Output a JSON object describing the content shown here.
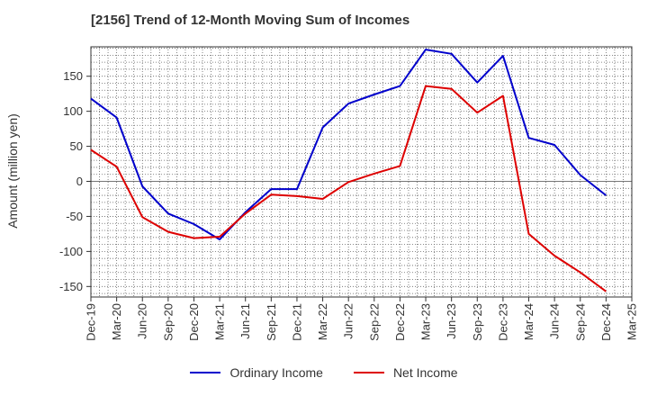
{
  "chart_data": {
    "type": "line",
    "title": "[2156]  Trend of 12-Month Moving Sum of Incomes",
    "xlabel": "",
    "ylabel": "Amount (million yen)",
    "ylim": [
      -165,
      192
    ],
    "yticks": [
      150,
      100,
      50,
      0,
      -50,
      -100,
      -150
    ],
    "categories": [
      "Dec-19",
      "Mar-20",
      "Jun-20",
      "Sep-20",
      "Dec-20",
      "Mar-21",
      "Jun-21",
      "Sep-21",
      "Dec-21",
      "Mar-22",
      "Jun-22",
      "Sep-22",
      "Dec-22",
      "Mar-23",
      "Jun-23",
      "Sep-23",
      "Dec-23",
      "Mar-24",
      "Jun-24",
      "Sep-24",
      "Dec-24",
      "Mar-25"
    ],
    "grid": true,
    "legend_position": "bottom",
    "series": [
      {
        "name": "Ordinary Income",
        "color": "#0000cc",
        "values": [
          118,
          91,
          -7,
          -46,
          -61,
          -83,
          -44,
          -11,
          -11,
          77,
          111,
          124,
          136,
          188,
          182,
          141,
          179,
          62,
          52,
          9,
          -20,
          null
        ]
      },
      {
        "name": "Net Income",
        "color": "#dd0000",
        "values": [
          45,
          21,
          -51,
          -72,
          -81,
          -79,
          -46,
          -19,
          -21,
          -25,
          -1,
          11,
          22,
          136,
          132,
          98,
          122,
          -75,
          -106,
          -130,
          -157,
          null
        ]
      }
    ]
  }
}
